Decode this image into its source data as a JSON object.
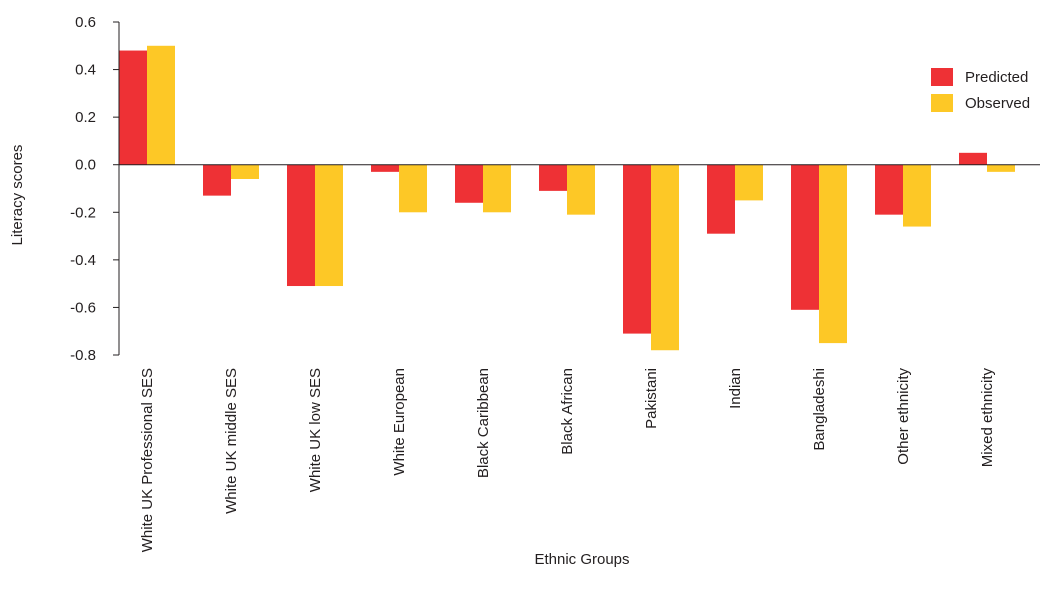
{
  "chart_data": {
    "type": "bar",
    "title": "",
    "xlabel": "Ethnic Groups",
    "ylabel": "Literacy scores",
    "ylim": [
      -0.8,
      0.6
    ],
    "yticks": [
      "0.6",
      "0.4",
      "0.2",
      "0.0",
      "-0.2",
      "-0.4",
      "-0.6",
      "-0.8"
    ],
    "grid": false,
    "legend_position": "top-right",
    "categories": [
      "White UK Professional SES",
      "White UK middle SES",
      "White UK low SES",
      "White European",
      "Black Caribbean",
      "Black African",
      "Pakistani",
      "Indian",
      "Bangladeshi",
      "Other ethnicity",
      "Mixed ethnicity"
    ],
    "series": [
      {
        "name": "Predicted",
        "color": "#ee3135",
        "values": [
          0.48,
          -0.13,
          -0.51,
          -0.03,
          -0.16,
          -0.11,
          -0.71,
          -0.29,
          -0.61,
          -0.21,
          0.05
        ]
      },
      {
        "name": "Observed",
        "color": "#fdc826",
        "values": [
          0.5,
          -0.06,
          -0.51,
          -0.2,
          -0.2,
          -0.21,
          -0.78,
          -0.15,
          -0.75,
          -0.26,
          -0.03
        ]
      }
    ]
  }
}
